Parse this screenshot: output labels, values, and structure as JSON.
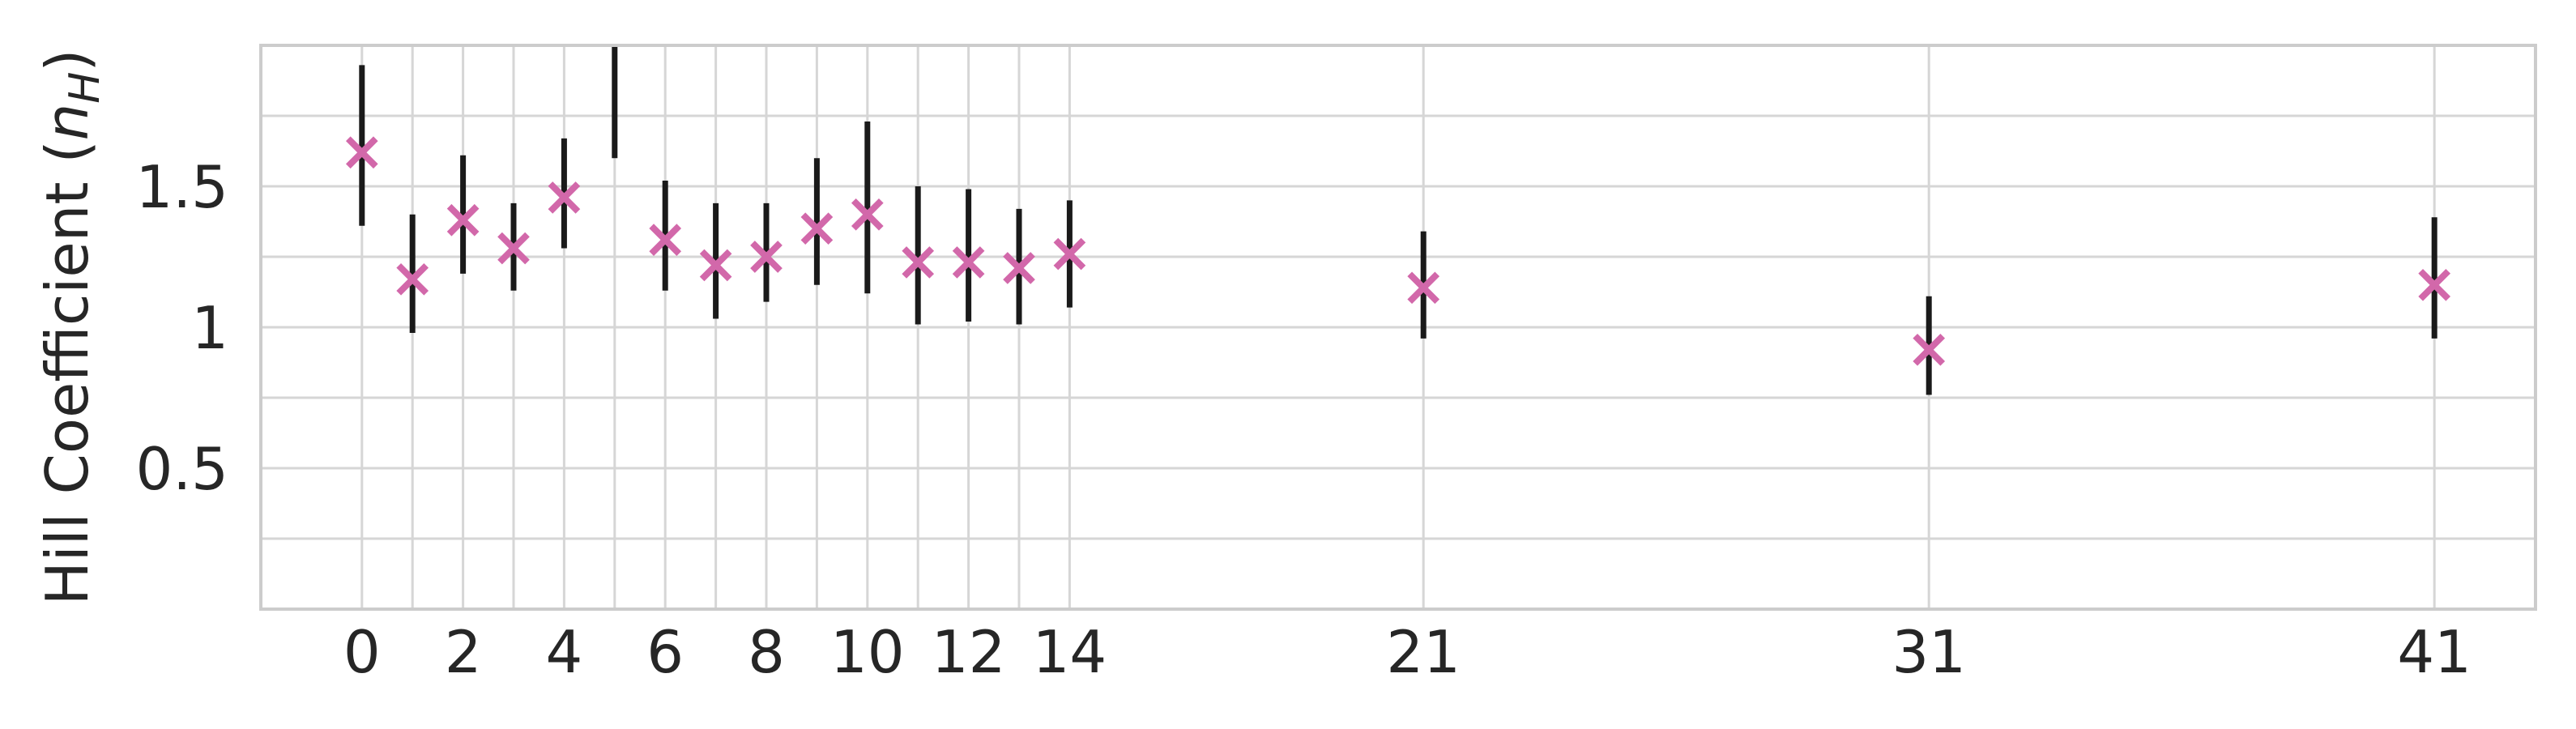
{
  "chart_data": {
    "type": "scatter",
    "ylabel": "Hill Coefficient",
    "ylabel_symbol": "n",
    "ylabel_subscript": "H",
    "xlim": [
      -2,
      43
    ],
    "ylim": [
      0,
      2
    ],
    "x_ticks": [
      0,
      1,
      2,
      3,
      4,
      5,
      6,
      7,
      8,
      9,
      10,
      11,
      12,
      13,
      14,
      21,
      31,
      41
    ],
    "x_tick_labels": [
      "0",
      "2",
      "4",
      "6",
      "8",
      "10",
      "12",
      "14",
      "21",
      "31",
      "41"
    ],
    "x_tick_label_values": [
      0,
      2,
      4,
      6,
      8,
      10,
      12,
      14,
      21,
      31,
      41
    ],
    "y_ticks": [
      0.25,
      0.5,
      0.75,
      1,
      1.25,
      1.5,
      1.75
    ],
    "y_tick_labels": [
      "0.5",
      "1",
      "1.5"
    ],
    "y_tick_label_values": [
      0.5,
      1,
      1.5
    ],
    "grid": true,
    "marker": "x",
    "marker_color": "#d268aa",
    "errorbar_color": "#1a1a1a",
    "points": [
      {
        "x": 0,
        "y": 1.62,
        "lo": 1.36,
        "hi": 1.93
      },
      {
        "x": 1,
        "y": 1.17,
        "lo": 0.98,
        "hi": 1.4
      },
      {
        "x": 2,
        "y": 1.38,
        "lo": 1.19,
        "hi": 1.61
      },
      {
        "x": 3,
        "y": 1.28,
        "lo": 1.13,
        "hi": 1.44
      },
      {
        "x": 4,
        "y": 1.46,
        "lo": 1.28,
        "hi": 1.67
      },
      {
        "x": 5,
        "y": null,
        "lo": 1.6,
        "hi": 2.0
      },
      {
        "x": 6,
        "y": 1.31,
        "lo": 1.13,
        "hi": 1.52
      },
      {
        "x": 7,
        "y": 1.22,
        "lo": 1.03,
        "hi": 1.44
      },
      {
        "x": 8,
        "y": 1.25,
        "lo": 1.09,
        "hi": 1.44
      },
      {
        "x": 9,
        "y": 1.35,
        "lo": 1.15,
        "hi": 1.6
      },
      {
        "x": 10,
        "y": 1.4,
        "lo": 1.12,
        "hi": 1.73
      },
      {
        "x": 11,
        "y": 1.23,
        "lo": 1.01,
        "hi": 1.5
      },
      {
        "x": 12,
        "y": 1.23,
        "lo": 1.02,
        "hi": 1.49
      },
      {
        "x": 13,
        "y": 1.21,
        "lo": 1.01,
        "hi": 1.42
      },
      {
        "x": 14,
        "y": 1.26,
        "lo": 1.07,
        "hi": 1.45
      },
      {
        "x": 21,
        "y": 1.14,
        "lo": 0.96,
        "hi": 1.34
      },
      {
        "x": 31,
        "y": 0.92,
        "lo": 0.76,
        "hi": 1.11
      },
      {
        "x": 41,
        "y": 1.15,
        "lo": 0.96,
        "hi": 1.39
      }
    ]
  }
}
